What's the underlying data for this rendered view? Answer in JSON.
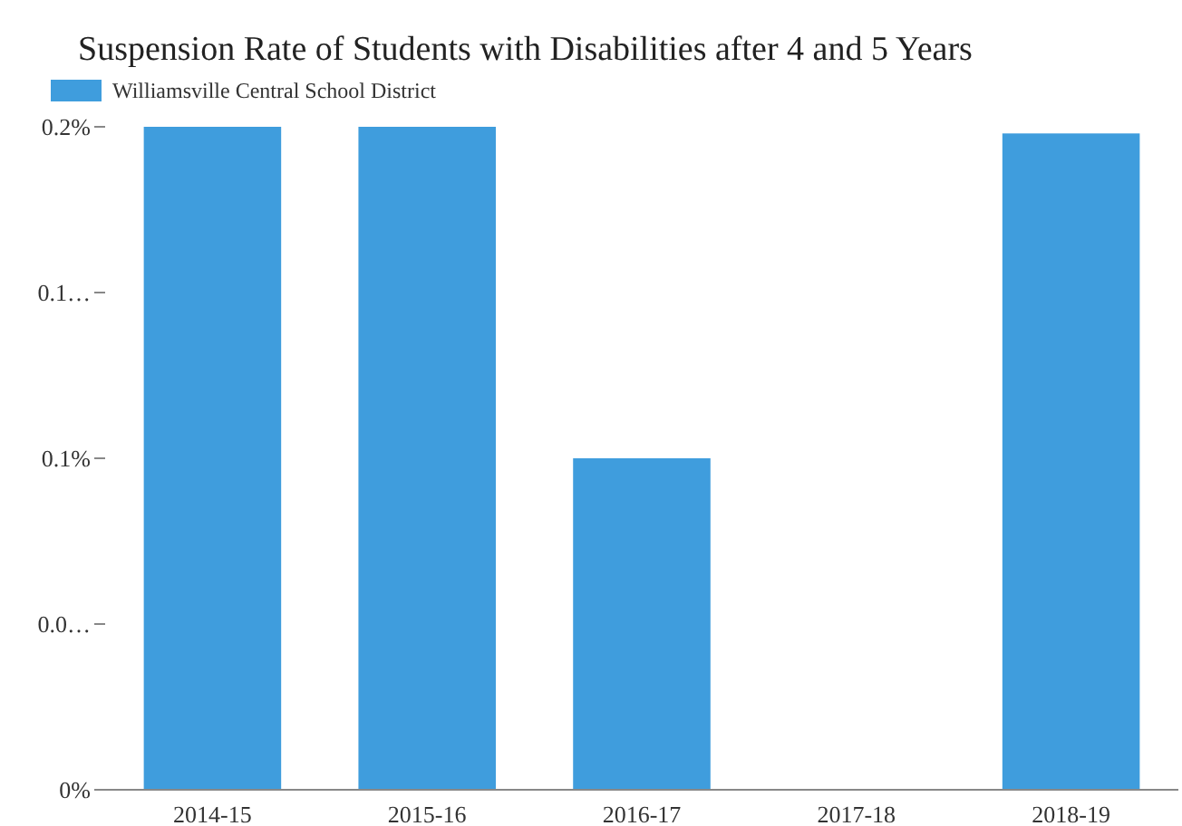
{
  "chart_data": {
    "type": "bar",
    "title": "Suspension Rate of Students with Disabilities after 4 and 5 Years",
    "categories": [
      "2014-15",
      "2015-16",
      "2016-17",
      "2017-18",
      "2018-19"
    ],
    "series": [
      {
        "name": "Williamsville Central School District",
        "color": "#3f9ddd",
        "values": [
          0.2,
          0.2,
          0.1,
          0,
          0.198
        ]
      }
    ],
    "ylim": [
      0,
      0.2
    ],
    "yticks": [
      {
        "value": 0,
        "label": "0%"
      },
      {
        "value": 0.05,
        "label": "0.0…"
      },
      {
        "value": 0.1,
        "label": "0.1%"
      },
      {
        "value": 0.15,
        "label": "0.1…"
      },
      {
        "value": 0.2,
        "label": "0.2%"
      }
    ],
    "legend": "top left",
    "grid": false
  }
}
